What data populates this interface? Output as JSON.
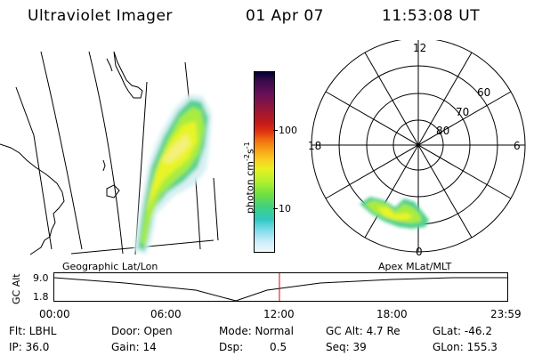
{
  "header": {
    "title": "Ultraviolet Imager",
    "date": "01 Apr 07",
    "time": "11:53:08 UT"
  },
  "geo_panel": {
    "label": "Geographic Lat/Lon"
  },
  "polar_panel": {
    "label": "Apex MLat/MLT",
    "mlt_labels": {
      "top": "12",
      "right": "6",
      "bottom": "0",
      "left": "18"
    },
    "lat_labels": [
      "60",
      "70",
      "80"
    ]
  },
  "colorbar": {
    "unit_label": "photon cm",
    "unit_sup1": "-2",
    "unit_s": "s",
    "unit_sup2": "-1",
    "tick_labels": [
      "100",
      "10"
    ],
    "colors": [
      "#000033",
      "#3a0b4a",
      "#66105a",
      "#93153a",
      "#c01a1a",
      "#e03010",
      "#f07010",
      "#f8a818",
      "#f8d020",
      "#e8f020",
      "#b0f030",
      "#70e040",
      "#40d080",
      "#30c8c0",
      "#80dcec",
      "#c8ecf8",
      "#f0f8fc"
    ]
  },
  "altitude_plot": {
    "ylabel": "GC Alt",
    "y_ticks": [
      "9.0",
      "1.8"
    ],
    "x_ticks": [
      "00:00",
      "06:00",
      "12:00",
      "18:00",
      "23:59"
    ],
    "current_time_fraction": 0.497,
    "accent_color": "#e00000"
  },
  "status": {
    "flt": "Flt: LBHL",
    "ip": "IP: 36.0",
    "door": "Door: Open",
    "gain": "Gain: 14",
    "mode": "Mode: Normal",
    "dsp_label": "Dsp:",
    "dsp_value": "0.5",
    "gc_alt": "GC Alt: 4.7 Re",
    "seq": "Seq: 39",
    "glat": "GLat: -46.2",
    "glon": "GLon: 155.3"
  }
}
